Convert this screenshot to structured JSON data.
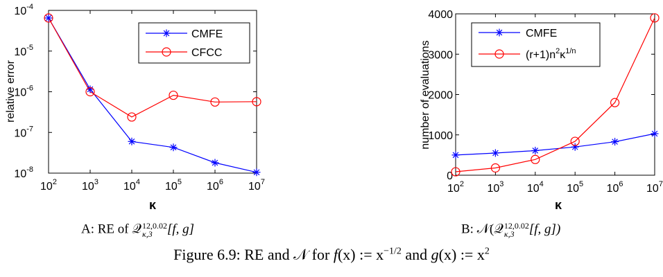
{
  "chart_data": [
    {
      "type": "line",
      "panel": "A",
      "xlabel": "κ",
      "ylabel": "relative error",
      "x_scale": "log",
      "y_scale": "log",
      "x": [
        100,
        1000,
        10000,
        100000,
        1000000,
        10000000
      ],
      "x_ticks": [
        {
          "base": "10",
          "exp": "2"
        },
        {
          "base": "10",
          "exp": "3"
        },
        {
          "base": "10",
          "exp": "4"
        },
        {
          "base": "10",
          "exp": "5"
        },
        {
          "base": "10",
          "exp": "6"
        },
        {
          "base": "10",
          "exp": "7"
        }
      ],
      "y_ticks": [
        {
          "base": "10",
          "exp": "-8"
        },
        {
          "base": "10",
          "exp": "-7"
        },
        {
          "base": "10",
          "exp": "-6"
        },
        {
          "base": "10",
          "exp": "-5"
        },
        {
          "base": "10",
          "exp": "-4"
        }
      ],
      "xlim": [
        100,
        10000000
      ],
      "ylim": [
        1e-08,
        0.0001
      ],
      "grid": false,
      "legend_position": "top-right",
      "series": [
        {
          "name": "CMFE",
          "color": "#0000ff",
          "marker": "asterisk",
          "values": [
            6.5e-05,
            1.15e-06,
            6e-08,
            4.3e-08,
            1.8e-08,
            1.05e-08
          ]
        },
        {
          "name": "CFCC",
          "color": "#ff0000",
          "marker": "circle",
          "values": [
            6.5e-05,
            1e-06,
            2.4e-07,
            8.2e-07,
            5.6e-07,
            5.7e-07
          ]
        }
      ]
    },
    {
      "type": "line",
      "panel": "B",
      "xlabel": "κ",
      "ylabel": "number of evaluations",
      "x_scale": "log",
      "y_scale": "linear",
      "x": [
        100,
        1000,
        10000,
        100000,
        1000000,
        10000000
      ],
      "x_ticks": [
        {
          "base": "10",
          "exp": "2"
        },
        {
          "base": "10",
          "exp": "3"
        },
        {
          "base": "10",
          "exp": "4"
        },
        {
          "base": "10",
          "exp": "5"
        },
        {
          "base": "10",
          "exp": "6"
        },
        {
          "base": "10",
          "exp": "7"
        }
      ],
      "y_ticks": [
        "0",
        "1000",
        "2000",
        "3000",
        "4000"
      ],
      "xlim": [
        100,
        10000000
      ],
      "ylim": [
        0,
        4000
      ],
      "grid": false,
      "legend_position": "top-left",
      "series": [
        {
          "name": "CMFE",
          "color": "#0000ff",
          "marker": "asterisk",
          "values": [
            500,
            550,
            610,
            700,
            830,
            1030
          ]
        },
        {
          "name": "(r+1)n²κ^(1/n)",
          "color": "#ff0000",
          "marker": "circle",
          "legend_parts": {
            "p1": "(r+1)n",
            "s1": "2",
            "p2": "κ",
            "s2": "1/n"
          },
          "values": [
            85,
            180,
            390,
            840,
            1800,
            3900
          ]
        }
      ]
    }
  ],
  "captions": {
    "a": "A: RE of 𝒬",
    "a_sup": "12,0.02",
    "a_sub": "κ,3",
    "a_tail": "[f, g]",
    "b_head": "B:  𝒩(𝒬",
    "b_sup": "12,0.02",
    "b_sub": "κ,3",
    "b_tail": "[f, g])",
    "figure_1": "Figure 6.9:   RE and 𝒩 for ",
    "figure_f": "f",
    "figure_2": "(x) := x",
    "figure_exp1": "−1/2",
    "figure_3": " and ",
    "figure_g": "g",
    "figure_4": "(x) := x",
    "figure_exp2": "2"
  }
}
